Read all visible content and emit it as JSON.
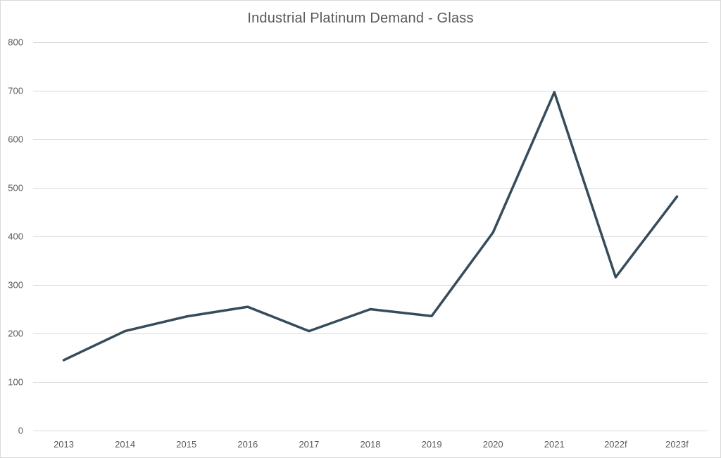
{
  "chart_data": {
    "type": "line",
    "title": "Industrial Platinum Demand - Glass",
    "xlabel": "",
    "ylabel": "",
    "categories": [
      "2013",
      "2014",
      "2015",
      "2016",
      "2017",
      "2018",
      "2019",
      "2020",
      "2021",
      "2022f",
      "2023f"
    ],
    "series": [
      {
        "values": [
          145,
          205,
          235,
          255,
          205,
          250,
          236,
          408,
          697,
          316,
          482
        ],
        "color": "#364c5b"
      }
    ],
    "ylim": [
      0,
      800
    ],
    "yticks": [
      0,
      100,
      200,
      300,
      400,
      500,
      600,
      700,
      800
    ],
    "grid": true,
    "legend": "none"
  }
}
